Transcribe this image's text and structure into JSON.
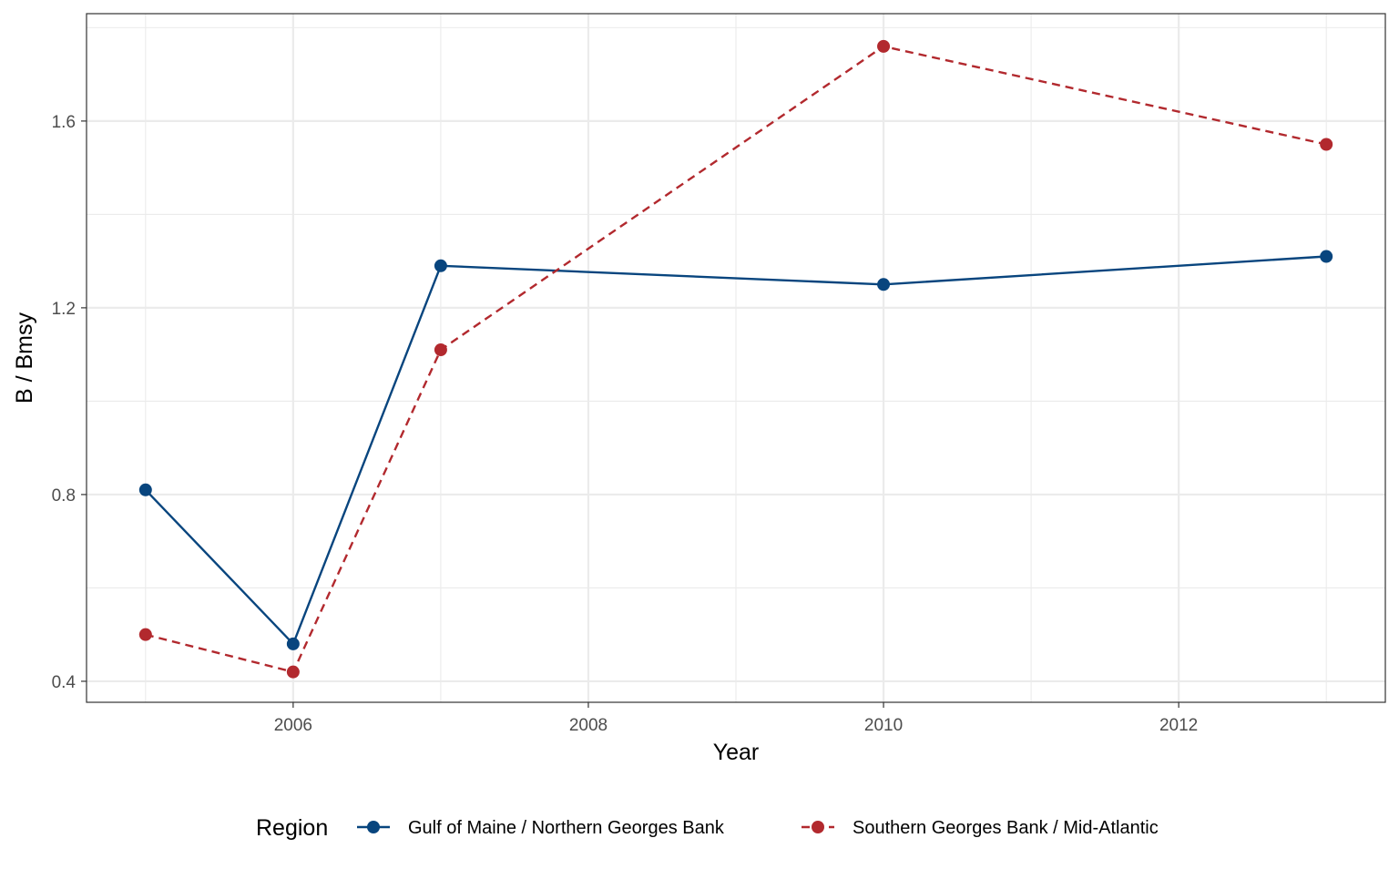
{
  "chart_data": {
    "type": "line",
    "title": "",
    "xlabel": "Year",
    "ylabel": "B / Bmsy",
    "xlim": [
      2004.6,
      2013.4
    ],
    "ylim": [
      0.355,
      1.83
    ],
    "x_ticks": [
      2006,
      2008,
      2010,
      2012
    ],
    "x_tick_labels": [
      "2006",
      "2008",
      "2010",
      "2012"
    ],
    "x_minor_ticks": [
      2005,
      2007,
      2009,
      2011,
      2013
    ],
    "y_ticks": [
      0.4,
      0.8,
      1.2,
      1.6
    ],
    "y_tick_labels": [
      "0.4",
      "0.8",
      "1.2",
      "1.6"
    ],
    "y_minor_ticks": [
      0.6,
      1.0,
      1.4,
      1.8
    ],
    "grid": true,
    "legend": {
      "title": "Region",
      "position": "bottom"
    },
    "series": [
      {
        "name": "Gulf of Maine / Northern Georges Bank",
        "color": "#08457e",
        "line_style": "solid",
        "x": [
          2005,
          2006,
          2007,
          2010,
          2013
        ],
        "y": [
          0.81,
          0.48,
          1.29,
          1.25,
          1.31
        ]
      },
      {
        "name": "Southern Georges Bank / Mid-Atlantic",
        "color": "#b2292e",
        "line_style": "dashed",
        "x": [
          2005,
          2006,
          2007,
          2010,
          2013
        ],
        "y": [
          0.5,
          0.42,
          1.11,
          1.76,
          1.55
        ]
      }
    ]
  }
}
